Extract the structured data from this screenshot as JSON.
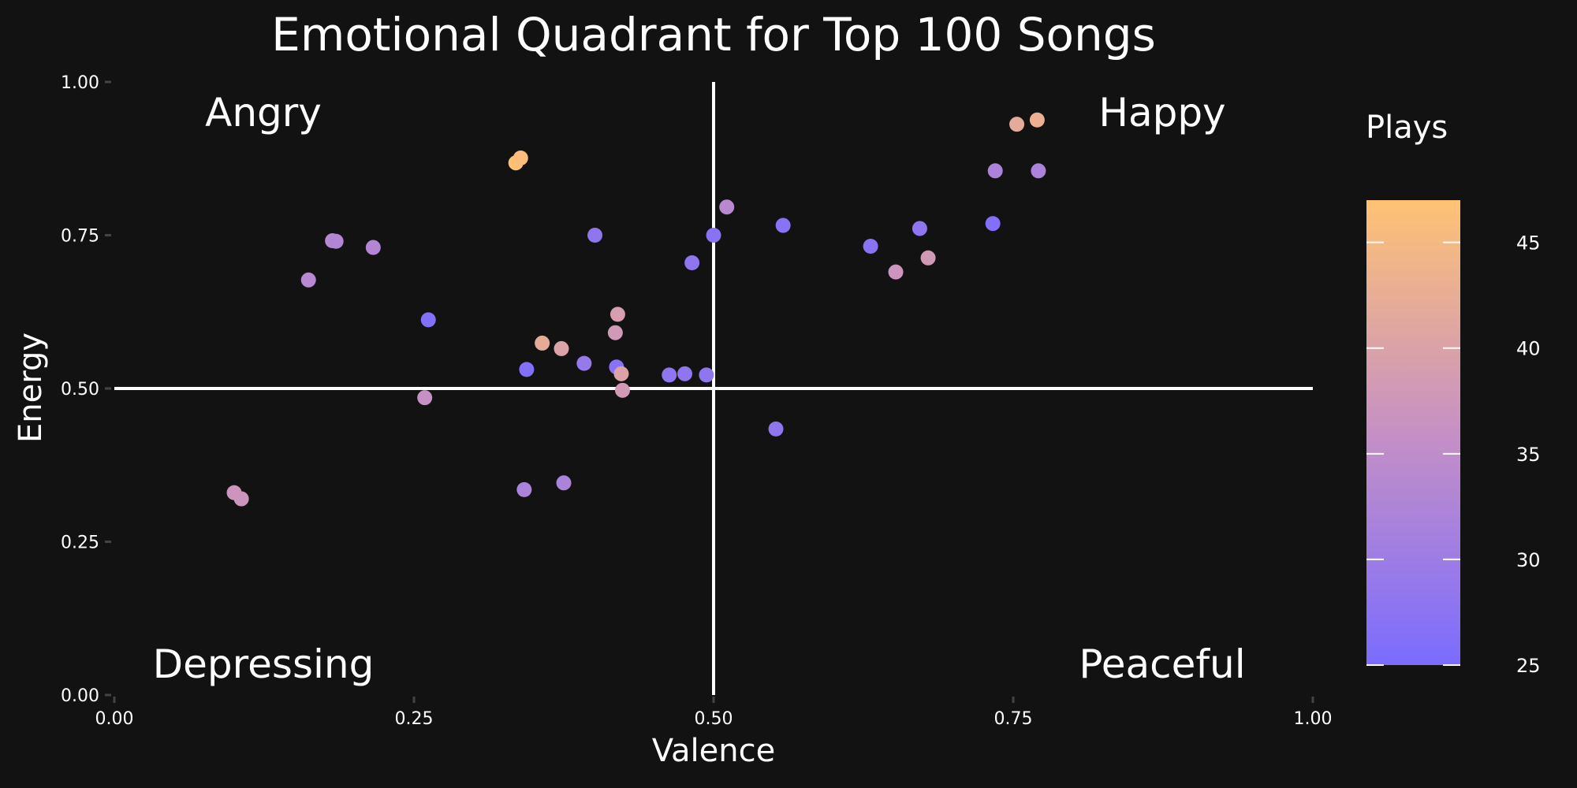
{
  "chart_data": {
    "type": "scatter",
    "title": "Emotional Quadrant for Top 100 Songs",
    "xlabel": "Valence",
    "ylabel": "Energy",
    "xlim": [
      0,
      1
    ],
    "ylim": [
      0,
      1
    ],
    "x_ticks": [
      "0.00",
      "0.25",
      "0.50",
      "0.75",
      "1.00"
    ],
    "y_ticks": [
      "0.00",
      "0.25",
      "0.50",
      "0.75",
      "1.00"
    ],
    "grid": false,
    "reference_lines": {
      "x": 0.5,
      "y": 0.5
    },
    "quadrant_labels": {
      "top_left": "Angry",
      "top_right": "Happy",
      "bottom_left": "Depressing",
      "bottom_right": "Peaceful"
    },
    "color_scale": {
      "title": "Plays",
      "min": 25,
      "max": 47,
      "ticks": [
        "25",
        "30",
        "35",
        "40",
        "45"
      ],
      "low_color": "#7B6CFF",
      "mid_color": "#C690C5",
      "high_color": "#FFC274"
    },
    "points": [
      {
        "x": 0.1,
        "y": 0.33,
        "plays": 37
      },
      {
        "x": 0.106,
        "y": 0.32,
        "plays": 37
      },
      {
        "x": 0.162,
        "y": 0.677,
        "plays": 34
      },
      {
        "x": 0.182,
        "y": 0.741,
        "plays": 34
      },
      {
        "x": 0.185,
        "y": 0.74,
        "plays": 33
      },
      {
        "x": 0.216,
        "y": 0.73,
        "plays": 33
      },
      {
        "x": 0.262,
        "y": 0.612,
        "plays": 26
      },
      {
        "x": 0.259,
        "y": 0.485,
        "plays": 36
      },
      {
        "x": 0.335,
        "y": 0.868,
        "plays": 47
      },
      {
        "x": 0.339,
        "y": 0.876,
        "plays": 46
      },
      {
        "x": 0.342,
        "y": 0.335,
        "plays": 32
      },
      {
        "x": 0.344,
        "y": 0.531,
        "plays": 26
      },
      {
        "x": 0.357,
        "y": 0.574,
        "plays": 42
      },
      {
        "x": 0.373,
        "y": 0.565,
        "plays": 40
      },
      {
        "x": 0.375,
        "y": 0.346,
        "plays": 32
      },
      {
        "x": 0.392,
        "y": 0.541,
        "plays": 29
      },
      {
        "x": 0.401,
        "y": 0.75,
        "plays": 28
      },
      {
        "x": 0.418,
        "y": 0.591,
        "plays": 38
      },
      {
        "x": 0.42,
        "y": 0.621,
        "plays": 39
      },
      {
        "x": 0.419,
        "y": 0.535,
        "plays": 27
      },
      {
        "x": 0.423,
        "y": 0.524,
        "plays": 40
      },
      {
        "x": 0.424,
        "y": 0.497,
        "plays": 38
      },
      {
        "x": 0.463,
        "y": 0.522,
        "plays": 28
      },
      {
        "x": 0.476,
        "y": 0.524,
        "plays": 28
      },
      {
        "x": 0.482,
        "y": 0.705,
        "plays": 28
      },
      {
        "x": 0.494,
        "y": 0.522,
        "plays": 28
      },
      {
        "x": 0.5,
        "y": 0.75,
        "plays": 27
      },
      {
        "x": 0.511,
        "y": 0.796,
        "plays": 34
      },
      {
        "x": 0.552,
        "y": 0.434,
        "plays": 28
      },
      {
        "x": 0.558,
        "y": 0.766,
        "plays": 27
      },
      {
        "x": 0.631,
        "y": 0.732,
        "plays": 27
      },
      {
        "x": 0.652,
        "y": 0.69,
        "plays": 37
      },
      {
        "x": 0.672,
        "y": 0.761,
        "plays": 28
      },
      {
        "x": 0.679,
        "y": 0.713,
        "plays": 38
      },
      {
        "x": 0.733,
        "y": 0.769,
        "plays": 26
      },
      {
        "x": 0.735,
        "y": 0.855,
        "plays": 32
      },
      {
        "x": 0.753,
        "y": 0.931,
        "plays": 42
      },
      {
        "x": 0.77,
        "y": 0.938,
        "plays": 43
      },
      {
        "x": 0.771,
        "y": 0.855,
        "plays": 32
      }
    ]
  }
}
